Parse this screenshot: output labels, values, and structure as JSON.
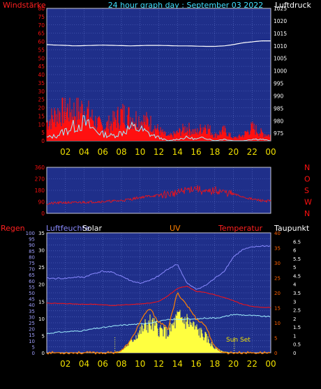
{
  "header": {
    "left_label": "Windstärke",
    "title": "24 hour graph day : September 03 2022",
    "right_label": "Luftdruck"
  },
  "colors": {
    "plot_bg": "#1f2f8a",
    "grid": "#5a6fc8",
    "frame": "#c8c8d8",
    "hour_label": "#f0e000",
    "red": "#ff1010",
    "cyan": "#a0f0ff",
    "white": "#ffffff",
    "humidity": "#8a8aff",
    "solar": "#ffff40",
    "uv": "#ff8000",
    "orange_axis": "#ff6000"
  },
  "x_ticks": [
    "02",
    "04",
    "06",
    "08",
    "10",
    "12",
    "14",
    "16",
    "18",
    "20",
    "22",
    "00"
  ],
  "chart_data": [
    {
      "type": "line",
      "title": "24 hour graph day : September 03 2022",
      "x": [
        0,
        1,
        2,
        3,
        4,
        5,
        6,
        7,
        8,
        9,
        10,
        11,
        12,
        13,
        14,
        15,
        16,
        17,
        18,
        19,
        20,
        21,
        22,
        23,
        24
      ],
      "left_axis": {
        "label": "Windstärke",
        "ylim": [
          0,
          80
        ],
        "ticks": [
          "0",
          "5",
          "10",
          "15",
          "20",
          "25",
          "30",
          "35",
          "40",
          "45",
          "50",
          "55",
          "60",
          "65",
          "70",
          "75",
          "80"
        ]
      },
      "right_axis": {
        "label": "Luftdruck",
        "ylim": [
          972,
          1025
        ],
        "ticks": [
          "975",
          "980",
          "985",
          "990",
          "995",
          "1000",
          "1005",
          "1010",
          "1015",
          "1020",
          "1025"
        ]
      },
      "series": [
        {
          "axis": "right",
          "color": "white",
          "values": [
            1010.5,
            1010.3,
            1010.2,
            1010.0,
            1010.1,
            1010.2,
            1010.3,
            1010.2,
            1010.1,
            1010.0,
            1010.1,
            1010.2,
            1010.2,
            1010.1,
            1010.0,
            1010.0,
            1009.9,
            1009.8,
            1009.8,
            1010.0,
            1010.5,
            1011.2,
            1011.6,
            1012.0,
            1012.0
          ]
        },
        {
          "axis": "left",
          "color": "red",
          "style": "bars",
          "values": [
            14,
            20,
            24,
            22,
            24,
            16,
            10,
            14,
            20,
            18,
            16,
            14,
            8,
            3,
            6,
            10,
            6,
            12,
            4,
            8,
            2,
            4,
            10,
            6,
            4
          ]
        },
        {
          "axis": "left",
          "color": "cyan",
          "values": [
            2,
            3,
            6,
            9,
            11,
            7,
            4,
            3,
            5,
            8,
            7,
            4,
            2,
            0,
            1,
            2,
            1,
            2,
            0,
            1,
            0,
            0,
            1,
            1,
            0
          ]
        }
      ]
    },
    {
      "type": "line",
      "left_axis": {
        "ylim": [
          0,
          360
        ],
        "ticks": [
          "0",
          "90",
          "180",
          "270",
          "360"
        ]
      },
      "right_axis": {
        "labels": [
          "N",
          "W",
          "S",
          "O",
          "N"
        ]
      },
      "series": [
        {
          "color": "red",
          "values": [
            75,
            80,
            85,
            82,
            88,
            90,
            92,
            95,
            100,
            110,
            125,
            135,
            140,
            150,
            160,
            185,
            200,
            160,
            180,
            165,
            150,
            130,
            110,
            100,
            95
          ]
        }
      ]
    },
    {
      "type": "area",
      "left_axis": {
        "label": "Regen",
        "ylim": [
          0,
          100
        ],
        "ticks": [
          "0",
          "5",
          "10",
          "15",
          "20",
          "25",
          "30",
          "35",
          "40",
          "45",
          "50",
          "55",
          "60",
          "65",
          "70",
          "75",
          "80",
          "85",
          "90",
          "95",
          "100"
        ]
      },
      "humidity_axis": {
        "label": "Luftfeuchte",
        "ylim": [
          0,
          35
        ],
        "ticks": [
          "0",
          "5",
          "10",
          "15",
          "20",
          "25",
          "30",
          "35"
        ]
      },
      "temperature_axis": {
        "label": "Temperatur",
        "ylim": [
          0,
          40
        ],
        "ticks": [
          "0",
          "5",
          "10",
          "15",
          "20",
          "25",
          "30",
          "35",
          "40"
        ]
      },
      "uv_axis": {
        "label": "UV",
        "ylim": [
          0,
          7
        ],
        "ticks": [
          "0",
          "0.5",
          "1",
          "1.5",
          "2",
          "2.5",
          "3",
          "3.5",
          "4",
          "4.5",
          "5",
          "5.5",
          "6",
          "6.5"
        ]
      },
      "legend": [
        "Solar",
        "UV",
        "Temperatur",
        "Taupunkt"
      ],
      "annotations": [
        "Sun Set"
      ],
      "series": [
        {
          "name": "Luftfeuchte",
          "axis": "left",
          "color": "humidity",
          "values": [
            62,
            62,
            62,
            63,
            63,
            66,
            68,
            67,
            64,
            60,
            58,
            60,
            64,
            70,
            74,
            58,
            53,
            56,
            62,
            68,
            80,
            86,
            88,
            89,
            89
          ]
        },
        {
          "name": "Temperatur",
          "axis": "temperature",
          "color": "red",
          "values": [
            16.5,
            16.5,
            16.4,
            16.3,
            16.2,
            16.2,
            16.0,
            15.8,
            15.9,
            16.1,
            16.3,
            16.6,
            17,
            19,
            21.5,
            22.2,
            20.5,
            20.1,
            19.3,
            18.4,
            17.4,
            16.1,
            15.5,
            15.2,
            15.1
          ]
        },
        {
          "name": "Taupunkt",
          "axis": "left",
          "color": "cyan",
          "values": [
            16,
            17,
            17.5,
            18,
            18.5,
            20,
            21,
            22,
            23,
            23.5,
            24,
            25,
            26,
            27.5,
            28,
            28,
            28,
            29,
            29,
            30,
            32,
            31.5,
            31,
            30.5,
            30
          ]
        },
        {
          "name": "Solar",
          "axis": "left",
          "color": "solar",
          "style": "area",
          "values": [
            0,
            0,
            0,
            0,
            0,
            0,
            0,
            0,
            2,
            10,
            20,
            28,
            22,
            18,
            32,
            30,
            22,
            15,
            4,
            1,
            0,
            0,
            0,
            0,
            0
          ]
        },
        {
          "name": "UV",
          "axis": "uv",
          "color": "uv",
          "values": [
            0,
            0,
            0,
            0,
            0,
            0,
            0,
            0,
            0.1,
            0.7,
            1.8,
            2.6,
            1.8,
            1.4,
            3.5,
            2.8,
            2.0,
            1.6,
            0.3,
            0,
            0,
            0,
            0,
            0,
            0
          ]
        }
      ]
    }
  ],
  "bottom_labels": {
    "regen": "Regen",
    "luftfeuchte": "Luftfeuchte",
    "solar": "Solar",
    "uv": "UV",
    "temperatur": "Temperatur",
    "taupunkt": "Taupunkt",
    "sunset": "Sun Set"
  }
}
